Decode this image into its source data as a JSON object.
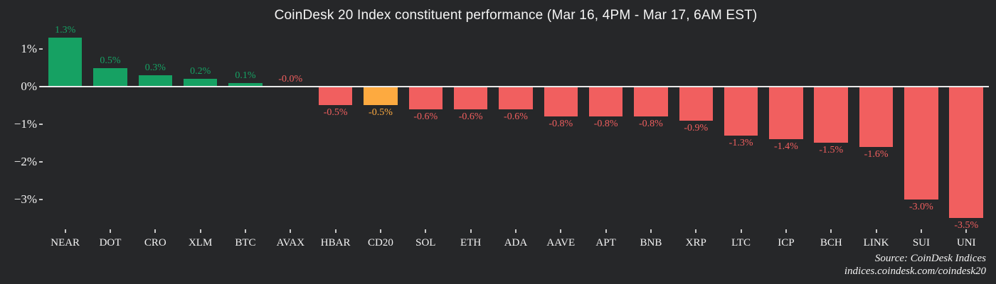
{
  "title": "CoinDesk 20 Index constituent performance (Mar 16, 4PM - Mar 17, 6AM EST)",
  "source": {
    "line1": "Source: CoinDesk Indices",
    "line2": "indices.coindesk.com/coindesk20"
  },
  "colors": {
    "background": "#262729",
    "positive": "#16a163",
    "negative": "#f15f5f",
    "highlight": "#fdaa40",
    "text": "#f2f2f2",
    "zero_line": "#e9e9e9",
    "tick": "#c9c9c9"
  },
  "chart_data": {
    "type": "bar",
    "title": "CoinDesk 20 Index constituent performance (Mar 16, 4PM - Mar 17, 6AM EST)",
    "categories": [
      "NEAR",
      "DOT",
      "CRO",
      "XLM",
      "BTC",
      "AVAX",
      "HBAR",
      "CD20",
      "SOL",
      "ETH",
      "ADA",
      "AAVE",
      "APT",
      "BNB",
      "XRP",
      "LTC",
      "ICP",
      "BCH",
      "LINK",
      "SUI",
      "UNI"
    ],
    "values": [
      1.3,
      0.5,
      0.3,
      0.2,
      0.1,
      -0.0,
      -0.5,
      -0.5,
      -0.6,
      -0.6,
      -0.6,
      -0.8,
      -0.8,
      -0.8,
      -0.9,
      -1.3,
      -1.4,
      -1.5,
      -1.6,
      -3.0,
      -3.5
    ],
    "value_labels": [
      "1.3%",
      "0.5%",
      "0.3%",
      "0.2%",
      "0.1%",
      "-0.0%",
      "-0.5%",
      "-0.5%",
      "-0.6%",
      "-0.6%",
      "-0.6%",
      "-0.8%",
      "-0.8%",
      "-0.8%",
      "-0.9%",
      "-1.3%",
      "-1.4%",
      "-1.5%",
      "-1.6%",
      "-3.0%",
      "-3.5%"
    ],
    "bar_colors": [
      "positive",
      "positive",
      "positive",
      "positive",
      "positive",
      "negative",
      "negative",
      "highlight",
      "negative",
      "negative",
      "negative",
      "negative",
      "negative",
      "negative",
      "negative",
      "negative",
      "negative",
      "negative",
      "negative",
      "negative",
      "negative"
    ],
    "xlabel": "",
    "ylabel": "",
    "ylim": [
      -3.8,
      1.55
    ],
    "yticks": [
      {
        "value": 1,
        "label": "1%"
      },
      {
        "value": 0,
        "label": "0%"
      },
      {
        "value": -1,
        "label": "−1%"
      },
      {
        "value": -2,
        "label": "−2%"
      },
      {
        "value": -3,
        "label": "−3%"
      }
    ],
    "grid": false,
    "legend": false
  }
}
